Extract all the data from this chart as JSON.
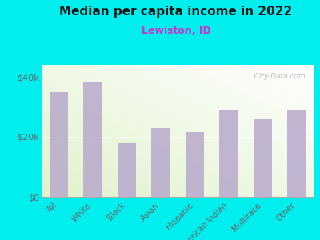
{
  "title": "Median per capita income in 2022",
  "subtitle": "Lewiston, ID",
  "categories": [
    "All",
    "White",
    "Black",
    "Asian",
    "Hispanic",
    "American Indian",
    "Multirace",
    "Other"
  ],
  "values": [
    35000,
    38500,
    18000,
    23000,
    21500,
    29000,
    26000,
    29000
  ],
  "bar_color": "#b8a9cc",
  "bar_alpha": 0.85,
  "background_outer": "#00EEEE",
  "title_color": "#1a1a1a",
  "subtitle_color": "#cc33cc",
  "tick_color": "#666666",
  "yticks": [
    0,
    20000,
    40000
  ],
  "ytick_labels": [
    "$0",
    "$20k",
    "$40k"
  ],
  "ylim": [
    0,
    44000
  ],
  "watermark": "  City-Data.com"
}
